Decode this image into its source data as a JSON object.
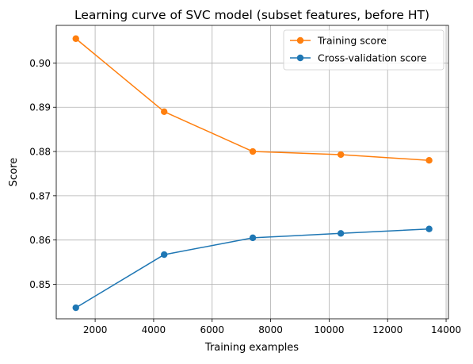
{
  "chart_data": {
    "type": "line",
    "title": "Learning curve of SVC model (subset features, before HT)",
    "xlabel": "Training examples",
    "ylabel": "Score",
    "xlim": [
      670,
      14080
    ],
    "ylim": [
      0.8422,
      0.9085
    ],
    "xticks": [
      2000,
      4000,
      6000,
      8000,
      10000,
      12000,
      14000
    ],
    "xtick_labels": [
      "2000",
      "4000",
      "6000",
      "8000",
      "10000",
      "12000",
      "14000"
    ],
    "yticks": [
      0.85,
      0.86,
      0.87,
      0.88,
      0.89,
      0.9
    ],
    "ytick_labels": [
      "0.85",
      "0.86",
      "0.87",
      "0.88",
      "0.89",
      "0.90"
    ],
    "grid": true,
    "legend_position": "upper right",
    "x": [
      1340,
      4360,
      7390,
      10400,
      13420
    ],
    "series": [
      {
        "name": "Training score",
        "color": "#ff7f0e",
        "marker": "circle",
        "values": [
          0.9055,
          0.889,
          0.88,
          0.8793,
          0.878
        ]
      },
      {
        "name": "Cross-validation score",
        "color": "#1f77b4",
        "marker": "circle",
        "values": [
          0.8447,
          0.8567,
          0.8605,
          0.8615,
          0.8625
        ]
      }
    ]
  }
}
